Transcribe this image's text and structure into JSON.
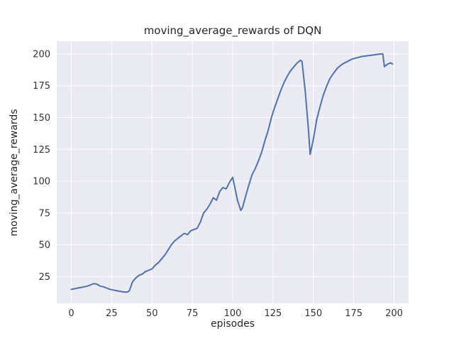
{
  "chart_data": {
    "type": "line",
    "title": "moving_average_rewards of DQN",
    "xlabel": "episodes",
    "ylabel": "moving_average_rewards",
    "xlim": [
      -9,
      209
    ],
    "ylim": [
      4,
      210
    ],
    "xticks": [
      0,
      25,
      50,
      75,
      100,
      125,
      150,
      175,
      200
    ],
    "yticks": [
      25,
      50,
      75,
      100,
      125,
      150,
      175,
      200
    ],
    "grid": true,
    "legend": "none",
    "x": [
      0,
      2,
      4,
      6,
      8,
      10,
      12,
      14,
      16,
      18,
      20,
      22,
      24,
      26,
      28,
      30,
      32,
      34,
      35,
      36,
      38,
      40,
      42,
      44,
      46,
      48,
      50,
      52,
      54,
      56,
      58,
      60,
      62,
      64,
      66,
      68,
      70,
      72,
      74,
      76,
      78,
      80,
      82,
      84,
      86,
      88,
      90,
      92,
      94,
      96,
      98,
      100,
      101,
      103,
      105,
      106,
      108,
      110,
      112,
      114,
      116,
      118,
      120,
      122,
      124,
      126,
      128,
      130,
      132,
      134,
      136,
      138,
      140,
      142,
      143,
      145,
      147,
      148,
      150,
      152,
      154,
      156,
      158,
      160,
      162,
      165,
      168,
      171,
      174,
      177,
      180,
      183,
      186,
      189,
      192,
      193,
      194,
      196,
      198,
      199
    ],
    "y": [
      15,
      15.5,
      16,
      16.5,
      17,
      17.5,
      18.5,
      19.5,
      19,
      17.5,
      17,
      16,
      15,
      14.5,
      14,
      13.5,
      13,
      12.8,
      13,
      14,
      21,
      24,
      26,
      27,
      29,
      30,
      31,
      34,
      36,
      39,
      42,
      46,
      50,
      53,
      55,
      57,
      59,
      58,
      61,
      62,
      63,
      68,
      75,
      78,
      82,
      87,
      85,
      92,
      95,
      94,
      99,
      103,
      97,
      85,
      77,
      79,
      88,
      97,
      105,
      110,
      116,
      123,
      132,
      140,
      150,
      158,
      165,
      172,
      178,
      183,
      187,
      190,
      193,
      195,
      194,
      170,
      140,
      121,
      133,
      148,
      158,
      167,
      174,
      180,
      184,
      189,
      192,
      194,
      196,
      197,
      198,
      198.5,
      199,
      199.5,
      200,
      200,
      190,
      192,
      193,
      192
    ],
    "colors": {
      "line": "#4c72b0",
      "plot_bg": "#eaeaf2",
      "grid": "#ffffff",
      "text": "#262626",
      "tick_text": "#333333"
    }
  }
}
